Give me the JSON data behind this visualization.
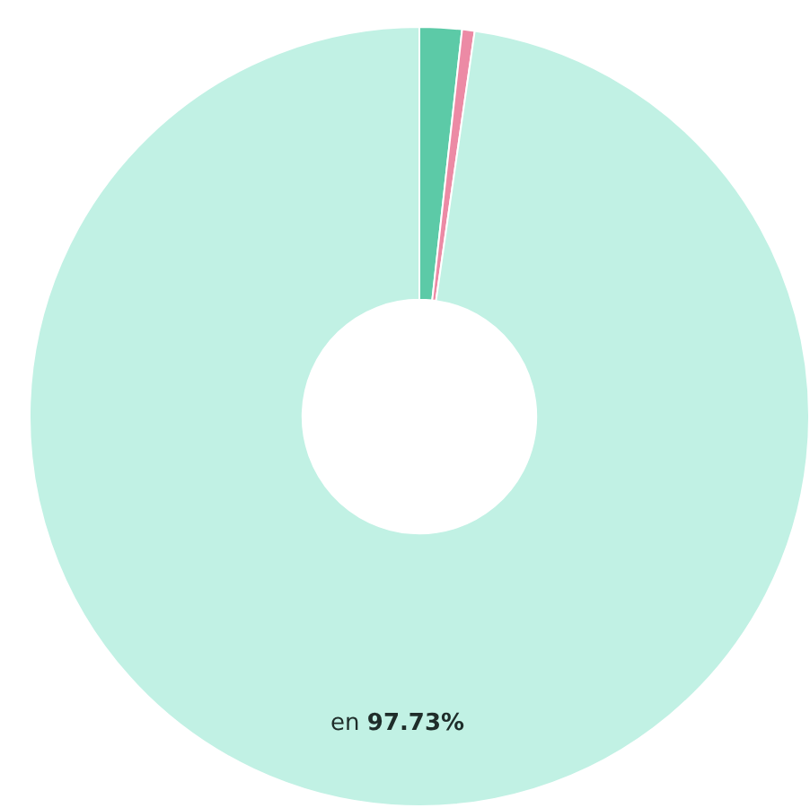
{
  "chart_data": {
    "type": "donut",
    "categories": [
      null,
      null,
      "en"
    ],
    "values": [
      1.75,
      0.52,
      97.73
    ],
    "colors": [
      "#5ccaa7",
      "#ec8aa5",
      "#c1f1e4"
    ],
    "value_labels": [
      null,
      null,
      "97.73%"
    ],
    "legend": false
  }
}
